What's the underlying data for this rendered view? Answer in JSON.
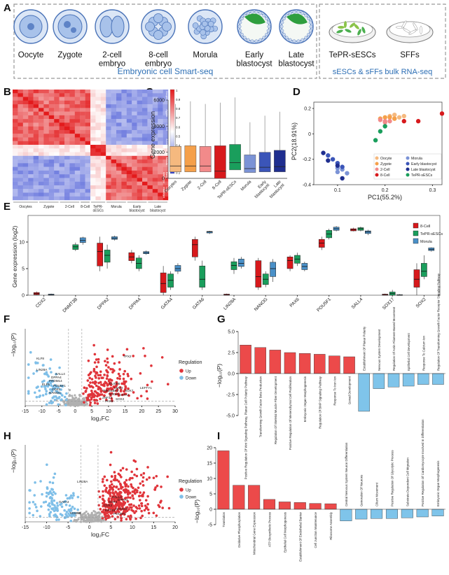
{
  "panel_letters": [
    "A",
    "B",
    "C",
    "D",
    "E",
    "F",
    "G",
    "H",
    "I"
  ],
  "panel_a": {
    "stages": [
      "Oocyte",
      "Zygote",
      "2-cell\nembryo",
      "8-cell\nembryo",
      "Morula",
      "Early\nblastocyst",
      "Late\nblastocyst"
    ],
    "group_left_label": "Embryonic cell Smart-seq",
    "bulk_items": [
      "TePR-sESCs",
      "SFFs"
    ],
    "group_right_label": "sESCs & sFFs bulk RNA-seq"
  },
  "chart_data": [
    {
      "panel": "B",
      "type": "heatmap",
      "groups": [
        "Oocytes",
        "Zygote",
        "2-Cell",
        "8-Cell",
        "TePR-\nsESCs",
        "Morula",
        "Early\nblastocyst",
        "Late\nblastocyst"
      ],
      "group_sizes": [
        5,
        4,
        4,
        2,
        3,
        4,
        4,
        4
      ],
      "colorbar_ticks": [
        "1",
        "0.9",
        "0.8",
        "0.7",
        "0.6",
        "0.5",
        "0.4",
        "0.3",
        "0.2",
        "0.1"
      ],
      "colors": {
        "high": "#e31a1c",
        "mid": "#ffffff",
        "low": "#2c3fd0"
      }
    },
    {
      "panel": "C",
      "type": "box",
      "ylabel": "Gene expression",
      "ylim": [
        0,
        6000
      ],
      "yticks": [
        "0",
        "2000",
        "4000",
        "6000"
      ],
      "categories": [
        "Oocytes",
        "Zygote",
        "2-Cell",
        "8-Cell",
        "TePR-sESCs",
        "Morula",
        "Early\nblastocyst",
        "Late\nblastocyst"
      ],
      "colors": [
        "#f5b97f",
        "#f5a04a",
        "#f28a8a",
        "#d7191c",
        "#1a9e5c",
        "#7b93d6",
        "#3b55b8",
        "#1f2e8f"
      ],
      "boxes": [
        {
          "q1": 500,
          "median": 950,
          "q3": 2450,
          "whisker_high": 5700
        },
        {
          "q1": 500,
          "median": 950,
          "q3": 2500,
          "whisker_high": 5900
        },
        {
          "q1": 500,
          "median": 950,
          "q3": 2450,
          "whisker_high": 5700
        },
        {
          "q1": 0,
          "median": 550,
          "q3": 2500,
          "whisker_high": 5800
        },
        {
          "q1": 650,
          "median": 1200,
          "q3": 2600,
          "whisker_high": 6200
        },
        {
          "q1": 450,
          "median": 750,
          "q3": 1800,
          "whisker_high": 4300
        },
        {
          "q1": 500,
          "median": 850,
          "q3": 2000,
          "whisker_high": 4800
        },
        {
          "q1": 500,
          "median": 900,
          "q3": 2150,
          "whisker_high": 5100
        }
      ]
    },
    {
      "panel": "D",
      "type": "scatter",
      "xlabel": "PC1(55.2%)",
      "ylabel": "PC2(18.91%)",
      "xlim": [
        0.05,
        0.32
      ],
      "ylim": [
        -0.4,
        0.25
      ],
      "xticks": [
        0.1,
        0.2,
        0.3
      ],
      "yticks": [
        -0.4,
        -0.2,
        0,
        0.2
      ],
      "legend_position": "bottom-right",
      "series": [
        {
          "name": "Oocyte",
          "color": "#f5b97f",
          "points": [
            [
              0.22,
              0.12
            ],
            [
              0.23,
              0.13
            ],
            [
              0.21,
              0.14
            ],
            [
              0.22,
              0.15
            ],
            [
              0.24,
              0.14
            ]
          ]
        },
        {
          "name": "Zygote",
          "color": "#f5a04a",
          "points": [
            [
              0.19,
              0.12
            ],
            [
              0.2,
              0.13
            ],
            [
              0.21,
              0.13
            ],
            [
              0.22,
              0.12
            ]
          ]
        },
        {
          "name": "2-Cell",
          "color": "#f28a8a",
          "points": [
            [
              0.2,
              0.1
            ],
            [
              0.19,
              0.11
            ],
            [
              0.2,
              0.09
            ],
            [
              0.21,
              0.1
            ]
          ]
        },
        {
          "name": "8-Cell",
          "color": "#d7191c",
          "points": [
            [
              0.32,
              0.16
            ],
            [
              0.27,
              0.1
            ],
            [
              0.24,
              0.1
            ]
          ]
        },
        {
          "name": "Morula",
          "color": "#7b93d6",
          "points": [
            [
              0.11,
              -0.28
            ],
            [
              0.1,
              -0.27
            ],
            [
              0.12,
              -0.31
            ],
            [
              0.1,
              -0.3
            ]
          ]
        },
        {
          "name": "Early blastocyst",
          "color": "#3b55b8",
          "points": [
            [
              0.09,
              -0.2
            ],
            [
              0.1,
              -0.23
            ],
            [
              0.08,
              -0.17
            ],
            [
              0.11,
              -0.26
            ]
          ]
        },
        {
          "name": "Late blastocyst",
          "color": "#1f2e8f",
          "points": [
            [
              0.07,
              -0.15
            ],
            [
              0.08,
              -0.21
            ],
            [
              0.1,
              -0.25
            ],
            [
              0.11,
              -0.35
            ]
          ]
        },
        {
          "name": "TePR-sESCs",
          "color": "#1a9e5c",
          "points": [
            [
              0.18,
              -0.05
            ],
            [
              0.19,
              0.02
            ],
            [
              0.2,
              0.06
            ]
          ]
        }
      ]
    },
    {
      "panel": "E",
      "type": "box",
      "ylabel": "Gene expression (log2)",
      "ylim": [
        0,
        15
      ],
      "yticks": [
        "0",
        "5",
        "10"
      ],
      "categories": [
        "CDX2",
        "DNMT3B",
        "DPPA2",
        "DPPA4",
        "GATA4",
        "GATA6",
        "LIN28A",
        "NANOG",
        "PAX6",
        "POU5F1",
        "SALL4",
        "SOX17",
        "SOX2"
      ],
      "series_names": [
        "8-Cell",
        "TePR-sESCs",
        "Morula"
      ],
      "series_colors": [
        "#d7191c",
        "#1a9e5c",
        "#4a90c8"
      ],
      "boxes": [
        [
          {
            "q1": 0.1,
            "median": 0.3,
            "q3": 0.5,
            "lo": 0,
            "hi": 0.7
          },
          null,
          {
            "q1": 0,
            "median": 0.1,
            "q3": 0.2,
            "lo": 0,
            "hi": 0.3
          }
        ],
        [
          null,
          {
            "q1": 8.6,
            "median": 9.1,
            "q3": 9.5,
            "lo": 8.3,
            "hi": 9.9
          },
          {
            "q1": 9.9,
            "median": 10.3,
            "q3": 10.8,
            "lo": 9.5,
            "hi": 11
          }
        ],
        [
          {
            "q1": 5.5,
            "median": 8.2,
            "q3": 9.8,
            "lo": 4.5,
            "hi": 11
          },
          {
            "q1": 6.2,
            "median": 7.5,
            "q3": 8.5,
            "lo": 5,
            "hi": 9.5
          },
          {
            "q1": 10.5,
            "median": 10.7,
            "q3": 11,
            "lo": 10.3,
            "hi": 11.2
          }
        ],
        [
          {
            "q1": 6.5,
            "median": 7.2,
            "q3": 8,
            "lo": 6,
            "hi": 8.5
          },
          {
            "q1": 5,
            "median": 6,
            "q3": 7,
            "lo": 4.5,
            "hi": 7.5
          },
          {
            "q1": 7.8,
            "median": 8,
            "q3": 8.2,
            "lo": 7.6,
            "hi": 8.4
          }
        ],
        [
          {
            "q1": 0.5,
            "median": 2.2,
            "q3": 4.2,
            "lo": 0,
            "hi": 5.5
          },
          {
            "q1": 1.5,
            "median": 2.8,
            "q3": 4,
            "lo": 1,
            "hi": 4.5
          },
          {
            "q1": 4.5,
            "median": 5,
            "q3": 5.6,
            "lo": 4,
            "hi": 6
          }
        ],
        [
          {
            "q1": 7.2,
            "median": 9.5,
            "q3": 10.5,
            "lo": 6.5,
            "hi": 11
          },
          {
            "q1": 1.5,
            "median": 3,
            "q3": 5.5,
            "lo": 1,
            "hi": 6.5
          },
          {
            "q1": 11.7,
            "median": 11.9,
            "q3": 12,
            "lo": 11.5,
            "hi": 12.1
          }
        ],
        [
          {
            "q1": 0,
            "median": 0.1,
            "q3": 0.2,
            "lo": 0,
            "hi": 0.3
          },
          {
            "q1": 4.8,
            "median": 5.6,
            "q3": 6.3,
            "lo": 4,
            "hi": 7
          },
          {
            "q1": 5.4,
            "median": 6,
            "q3": 6.8,
            "lo": 5,
            "hi": 7.2
          }
        ],
        [
          {
            "q1": 1.5,
            "median": 3.5,
            "q3": 6.5,
            "lo": 1,
            "hi": 7
          },
          {
            "q1": 2,
            "median": 3,
            "q3": 4,
            "lo": 1.5,
            "hi": 4.5
          },
          {
            "q1": 3.5,
            "median": 5,
            "q3": 6.2,
            "lo": 2.5,
            "hi": 6.8
          }
        ],
        [
          {
            "q1": 5,
            "median": 6.5,
            "q3": 7.2,
            "lo": 4.5,
            "hi": 7.5
          },
          {
            "q1": 6,
            "median": 6.8,
            "q3": 7.5,
            "lo": 5.5,
            "hi": 8
          },
          {
            "q1": 4.8,
            "median": 5.4,
            "q3": 6,
            "lo": 4.5,
            "hi": 6.3
          }
        ],
        [
          {
            "q1": 9,
            "median": 9.8,
            "q3": 10.5,
            "lo": 8.5,
            "hi": 11
          },
          {
            "q1": 10.8,
            "median": 11.5,
            "q3": 12.2,
            "lo": 10.5,
            "hi": 12.5
          },
          {
            "q1": 12.2,
            "median": 12.5,
            "q3": 12.8,
            "lo": 12,
            "hi": 13
          }
        ],
        [
          {
            "q1": 12.1,
            "median": 12.3,
            "q3": 12.5,
            "lo": 12,
            "hi": 12.7
          },
          {
            "q1": 12.2,
            "median": 12.5,
            "q3": 12.7,
            "lo": 12,
            "hi": 12.9
          },
          {
            "q1": 11.6,
            "median": 11.9,
            "q3": 12.1,
            "lo": 11.3,
            "hi": 12.3
          }
        ],
        [
          {
            "q1": 0,
            "median": 0.1,
            "q3": 0.2,
            "lo": 0,
            "hi": 0.3
          },
          {
            "q1": 0,
            "median": 0.3,
            "q3": 0.6,
            "lo": 0,
            "hi": 1
          },
          {
            "q1": 0,
            "median": 0,
            "q3": 0.1,
            "lo": 0,
            "hi": 0.2
          }
        ],
        [
          {
            "q1": 1.5,
            "median": 3,
            "q3": 4.8,
            "lo": 0,
            "hi": 6
          },
          {
            "q1": 3.5,
            "median": 4.5,
            "q3": 6,
            "lo": 3,
            "hi": 7.5
          },
          {
            "q1": 8.4,
            "median": 8.6,
            "q3": 8.9,
            "lo": 8.2,
            "hi": 9
          }
        ]
      ]
    },
    {
      "panel": "F",
      "type": "scatter",
      "xlabel": "log₂FC",
      "ylabel": "−log₁₀(P)",
      "xlim": [
        -15,
        30
      ],
      "xticks": [
        -15,
        -10,
        -5,
        0,
        5,
        10,
        15,
        20,
        25,
        30
      ],
      "legend_title": "Regulation",
      "legend": [
        "Up",
        "Down"
      ],
      "colors": {
        "up": "#e0343a",
        "down": "#7fbfe8",
        "ns": "#b0b0b0"
      },
      "labels_up": [
        "TPX2",
        "DUSP6",
        "TNKS1BP2",
        "NODAL",
        "ZNF34",
        "PAX6",
        "SOX2",
        "GATA2",
        "LMO2",
        "SOX7",
        "LEFTY1"
      ],
      "labels_down": [
        "KLF8",
        "LIN28A",
        "SALL4",
        "DPPA4",
        "PRDM14",
        "ELF5",
        "POU5F1",
        "CDX2",
        "NANOG"
      ]
    },
    {
      "panel": "G",
      "type": "bar",
      "ylabel": "−log₁₀(P)",
      "ylim": [
        -5,
        5
      ],
      "yticks": [
        "5.0",
        "2.5",
        "0.0",
        "-2.5",
        "-5.0"
      ],
      "categories": [
        "Positive Regulation Of Wnt Signaling Pathway, Planar Cell Polarity Pathway",
        "Transforming Growth Factor Beta Production",
        "Regulation Of Skeletal Muscle Fiber Development",
        "Positive Regulation Of Mesenchymal Cell Proliferation",
        "Embryonic Organ Morphogenesis",
        "Regulation Of BMP Signaling Pathway",
        "Response To Iron Ion",
        "Gonad Development",
        "Establishment Of Planar Polarity",
        "Nervous System Development",
        "Regulation Of Actin Filament-Based Movement",
        "Epithelial Cell Development",
        "Response To Calcium Ion",
        "Regulation Of Transforming Growth Factor Receptor Signaling Pathway"
      ],
      "values": [
        3.4,
        3.1,
        2.8,
        2.5,
        2.4,
        2.3,
        2.1,
        2.0,
        -4.5,
        -1.8,
        -1.6,
        -1.5,
        -1.3,
        -1.3
      ]
    },
    {
      "panel": "H",
      "type": "scatter",
      "xlabel": "log₂FC",
      "ylabel": "−log₁₀(P)",
      "xlim": [
        -15,
        20
      ],
      "xticks": [
        -15,
        -10,
        -5,
        0,
        5,
        10,
        15,
        20
      ],
      "legend_title": "Regulation",
      "legend": [
        "Up",
        "Down"
      ],
      "colors": {
        "up": "#e0343a",
        "down": "#7fbfe8",
        "ns": "#b0b0b0"
      },
      "labels_up": [
        "SALL4",
        "SOX2",
        "CDX2",
        "KRT19",
        "NANOG",
        "POU5F1",
        "DPPA4"
      ],
      "labels_down": [
        "LIN28A",
        "GATA3",
        "KDM1B"
      ]
    },
    {
      "panel": "I",
      "type": "bar",
      "ylabel": "−log₁₀(P)",
      "ylim": [
        -5,
        20
      ],
      "yticks": [
        "20",
        "15",
        "10",
        "5",
        "0",
        "-5"
      ],
      "categories": [
        "Translation",
        "Oxidative Phosphorylation",
        "Mitochondrial Gene Expression",
        "ATP Biosynthetic Process",
        "Epithelial Cell Morphogenesis",
        "Establishment Of Endothelial Barrier",
        "Cell Junction Maintenance",
        "Ribosome Assembly",
        "Central Nervous System Neuron Differentiation",
        "Generation Of Neurons",
        "Cilium Movement",
        "Positive Regulation Of Glycolytic Process",
        "Substrate-Dependent Cell Migration",
        "Positive Regulation Of Cardiomyocyte Involved In Differentiation",
        "Embryonic Organ Morphogenesis"
      ],
      "values": [
        19,
        7.8,
        7.8,
        3.2,
        2.4,
        2.2,
        1.9,
        1.8,
        -3.8,
        -3.2,
        -3.0,
        -3.0,
        -2.8,
        -2.5,
        -2.2
      ]
    }
  ]
}
